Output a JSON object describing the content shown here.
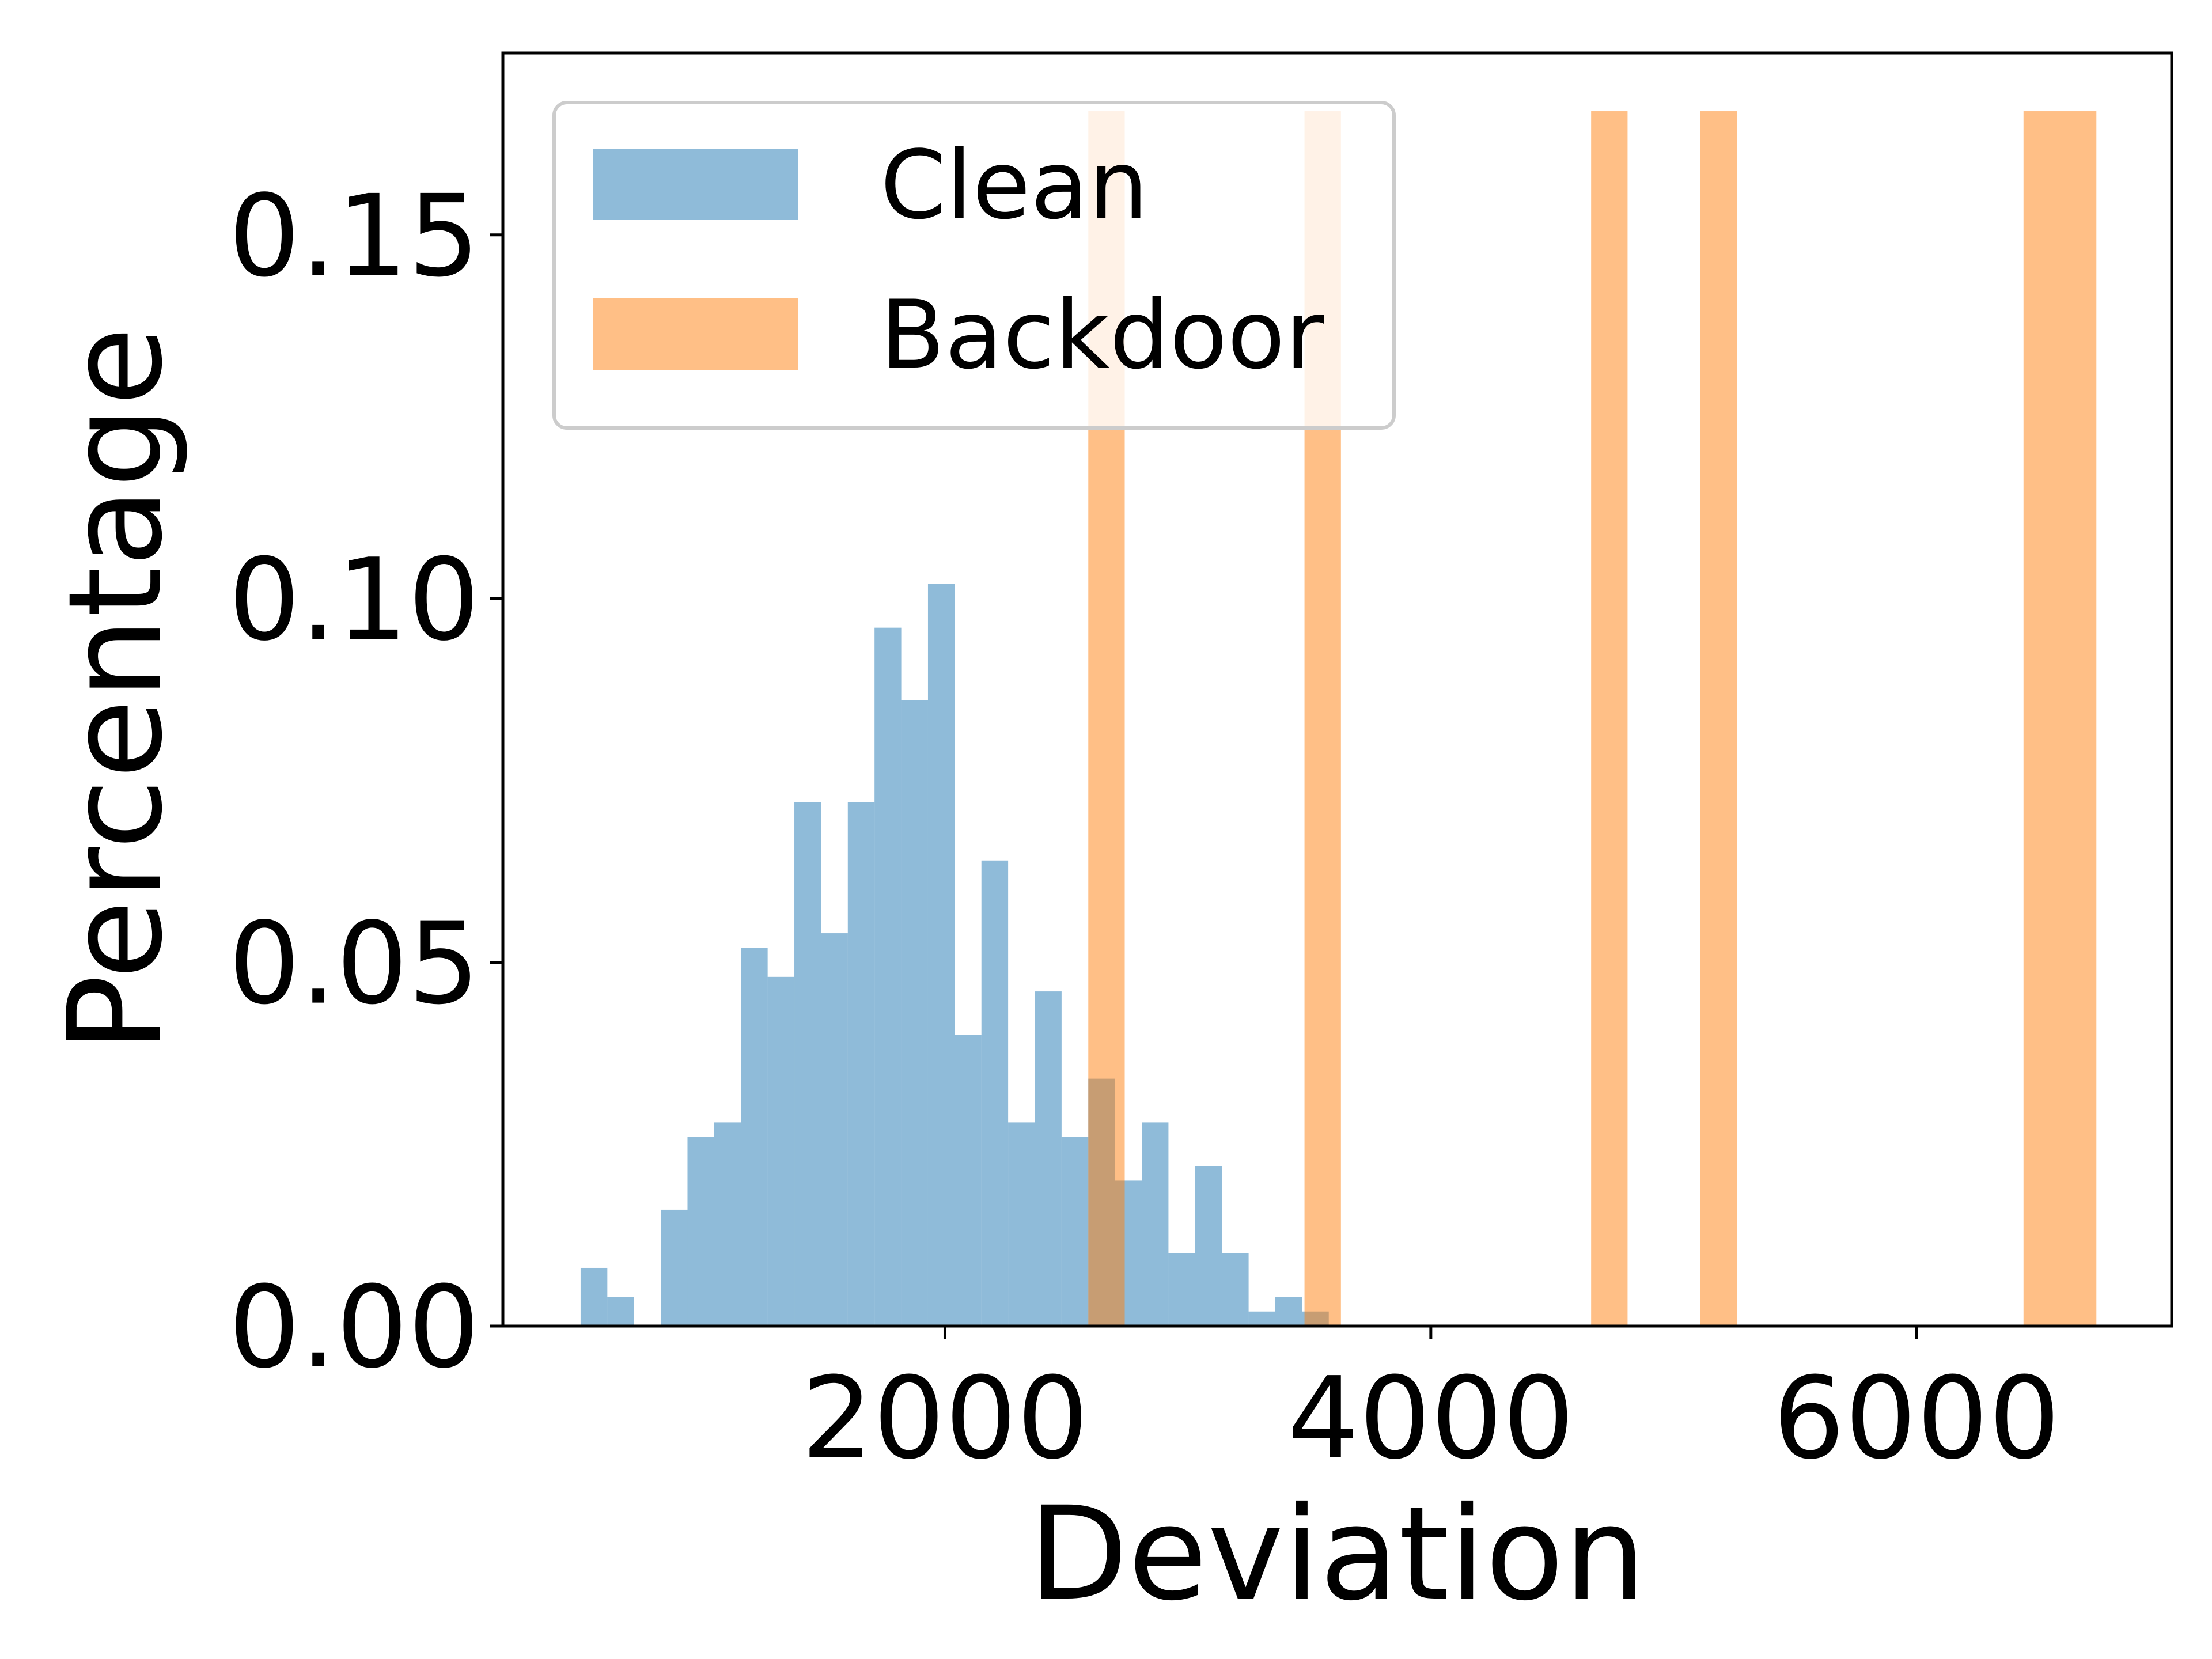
{
  "chart_data": {
    "type": "bar",
    "xlabel": "Deviation",
    "ylabel": "Percentage",
    "xlim": [
      180,
      7050
    ],
    "ylim": [
      0,
      0.175
    ],
    "x_ticks": [
      2000,
      4000,
      6000
    ],
    "x_tick_labels": [
      "2000",
      "4000",
      "6000"
    ],
    "y_ticks": [
      0.0,
      0.05,
      0.1,
      0.15
    ],
    "y_tick_labels": [
      "0.00",
      "0.05",
      "0.10",
      "0.15"
    ],
    "grid": false,
    "legend_position": "top-left",
    "series": [
      {
        "name": "Clean",
        "color": "#1f77b4",
        "opacity": 0.5,
        "bins": [
          {
            "x0": 500,
            "x1": 610,
            "value": 0.008
          },
          {
            "x0": 610,
            "x1": 720,
            "value": 0.004
          },
          {
            "x0": 830,
            "x1": 940,
            "value": 0.016
          },
          {
            "x0": 940,
            "x1": 1050,
            "value": 0.026
          },
          {
            "x0": 1050,
            "x1": 1160,
            "value": 0.028
          },
          {
            "x0": 1160,
            "x1": 1270,
            "value": 0.052
          },
          {
            "x0": 1270,
            "x1": 1380,
            "value": 0.048
          },
          {
            "x0": 1380,
            "x1": 1490,
            "value": 0.072
          },
          {
            "x0": 1490,
            "x1": 1600,
            "value": 0.054
          },
          {
            "x0": 1600,
            "x1": 1710,
            "value": 0.072
          },
          {
            "x0": 1710,
            "x1": 1820,
            "value": 0.096
          },
          {
            "x0": 1820,
            "x1": 1930,
            "value": 0.086
          },
          {
            "x0": 1930,
            "x1": 2040,
            "value": 0.102
          },
          {
            "x0": 2040,
            "x1": 2150,
            "value": 0.04
          },
          {
            "x0": 2150,
            "x1": 2260,
            "value": 0.064
          },
          {
            "x0": 2260,
            "x1": 2370,
            "value": 0.028
          },
          {
            "x0": 2370,
            "x1": 2480,
            "value": 0.046
          },
          {
            "x0": 2480,
            "x1": 2590,
            "value": 0.026
          },
          {
            "x0": 2590,
            "x1": 2700,
            "value": 0.034
          },
          {
            "x0": 2700,
            "x1": 2810,
            "value": 0.02
          },
          {
            "x0": 2810,
            "x1": 2920,
            "value": 0.028
          },
          {
            "x0": 2920,
            "x1": 3030,
            "value": 0.01
          },
          {
            "x0": 3030,
            "x1": 3140,
            "value": 0.022
          },
          {
            "x0": 3140,
            "x1": 3250,
            "value": 0.01
          },
          {
            "x0": 3250,
            "x1": 3360,
            "value": 0.002
          },
          {
            "x0": 3360,
            "x1": 3470,
            "value": 0.004
          },
          {
            "x0": 3470,
            "x1": 3580,
            "value": 0.002
          }
        ]
      },
      {
        "name": "Backdoor",
        "color": "#ff7f0e",
        "opacity": 0.5,
        "bins": [
          {
            "x0": 2590,
            "x1": 2740,
            "value": 0.167
          },
          {
            "x0": 3480,
            "x1": 3630,
            "value": 0.167
          },
          {
            "x0": 4660,
            "x1": 4810,
            "value": 0.167
          },
          {
            "x0": 5110,
            "x1": 5260,
            "value": 0.167
          },
          {
            "x0": 6440,
            "x1": 6740,
            "value": 0.167
          }
        ]
      }
    ]
  }
}
